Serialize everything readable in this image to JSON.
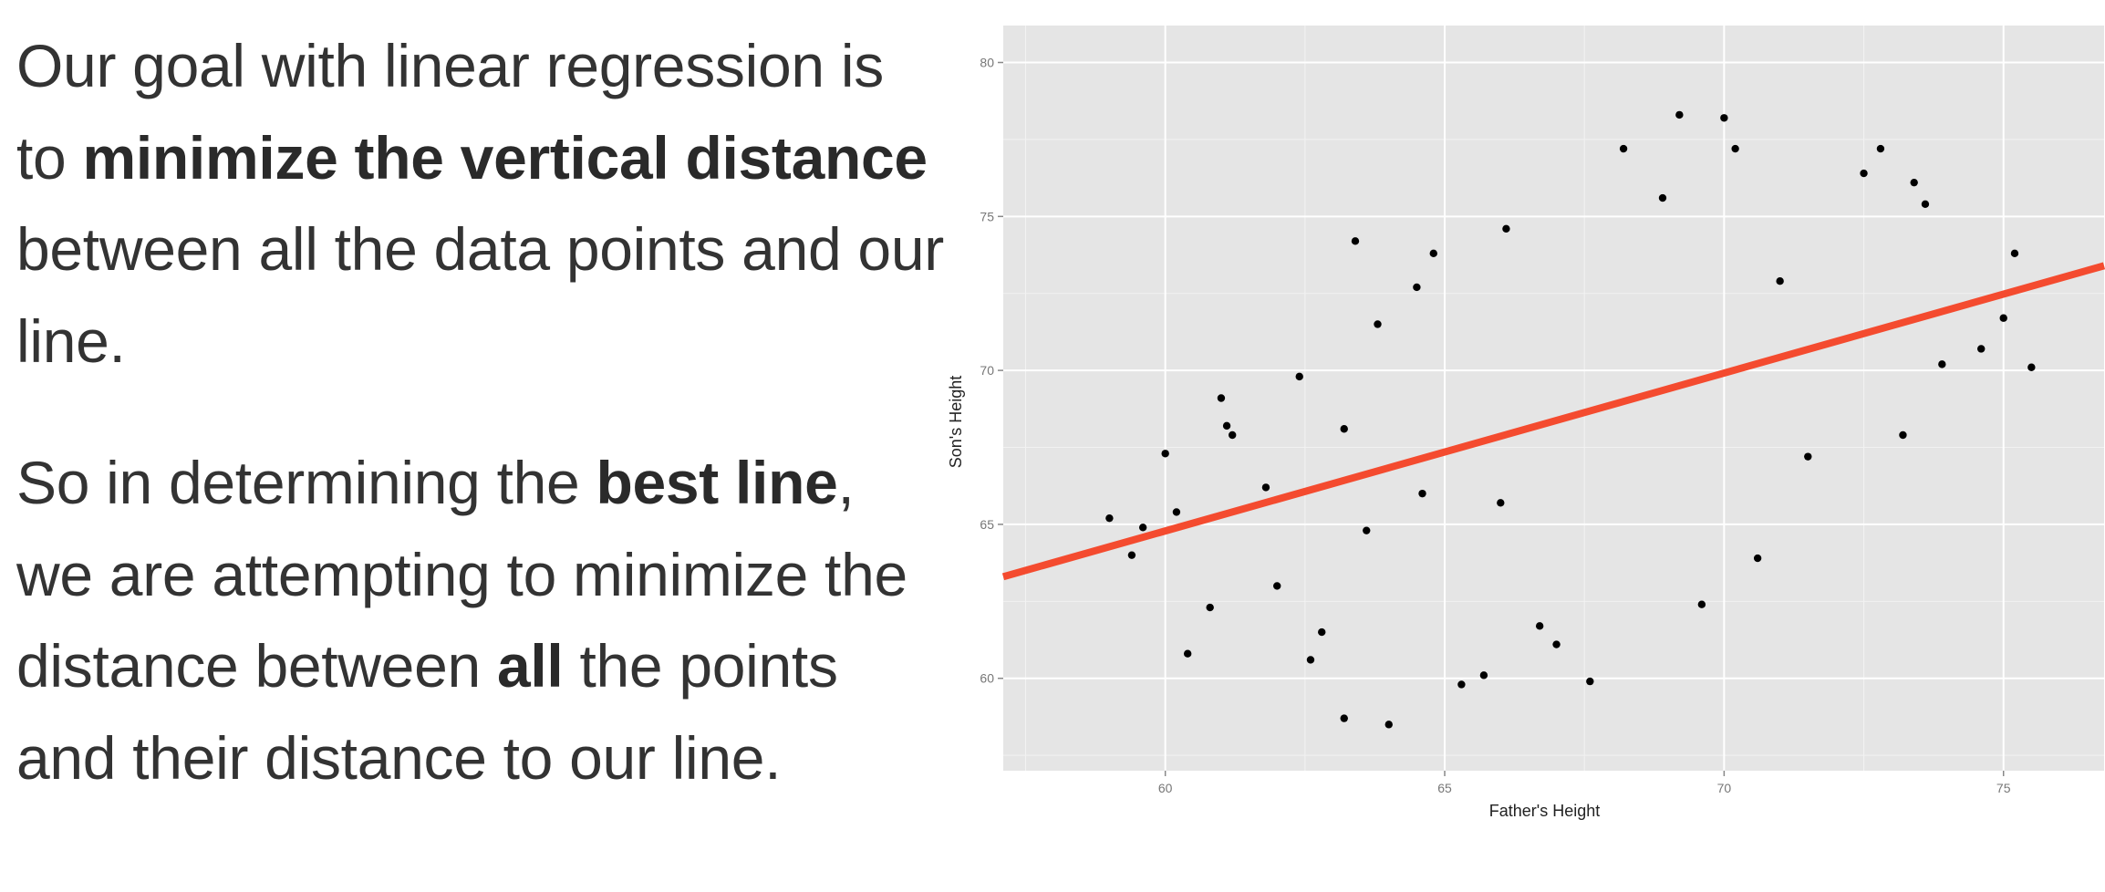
{
  "text": {
    "p1": [
      {
        "t": "Our goal with linear regression is to ",
        "b": false
      },
      {
        "t": "minimize the vertical distance",
        "b": true
      },
      {
        "t": " between all the data points and our line.",
        "b": false
      }
    ],
    "p2": [
      {
        "t": "So in determining the ",
        "b": false
      },
      {
        "t": "best line",
        "b": true
      },
      {
        "t": ", we are attempting to minimize the distance between ",
        "b": false
      },
      {
        "t": "all",
        "b": true
      },
      {
        "t": " the points and their distance to our line.",
        "b": false
      }
    ]
  },
  "chart_data": {
    "type": "scatter",
    "xlabel": "Father's Height",
    "ylabel": "Son's Height",
    "xlim": [
      57.1,
      76.8
    ],
    "ylim": [
      57.0,
      81.2
    ],
    "xticks": [
      60,
      65,
      70,
      75
    ],
    "yticks": [
      60,
      65,
      70,
      75,
      80
    ],
    "grid": true,
    "background": "#e5e5e5",
    "grid_color": "#ffffff",
    "point_color": "#000000",
    "line_color": "#f44b2f",
    "regression_line": {
      "x": [
        57.1,
        76.8
      ],
      "y": [
        63.3,
        73.4
      ]
    },
    "points": {
      "x": [
        59.0,
        59.4,
        59.6,
        60.0,
        60.4,
        60.8,
        61.0,
        61.2,
        62.0,
        62.6,
        62.8,
        63.2,
        63.6,
        64.0,
        63.4,
        63.8,
        64.5,
        64.8,
        65.3,
        65.7,
        66.1,
        66.7,
        67.0,
        67.6,
        68.2,
        68.9,
        69.2,
        70.0,
        70.2,
        72.5,
        72.8,
        73.4,
        75.0,
        75.2,
        75.5,
        74.6,
        73.9,
        73.6,
        73.2,
        71.5,
        71.0,
        70.6,
        69.6,
        66.0,
        64.6,
        63.2,
        62.4,
        61.8,
        61.1,
        60.2
      ],
      "y": [
        65.2,
        64.0,
        64.9,
        67.3,
        60.8,
        62.3,
        69.1,
        67.9,
        63.0,
        60.6,
        61.5,
        58.7,
        64.8,
        58.5,
        74.2,
        71.5,
        72.7,
        73.8,
        59.8,
        60.1,
        74.6,
        61.7,
        61.1,
        59.9,
        77.2,
        75.6,
        78.3,
        78.2,
        77.2,
        76.4,
        77.2,
        76.1,
        71.7,
        73.8,
        70.1,
        70.7,
        70.2,
        75.4,
        67.9,
        67.2,
        72.9,
        63.9,
        62.4,
        65.7,
        66.0,
        68.1,
        69.8,
        66.2,
        68.2,
        65.4
      ]
    }
  }
}
